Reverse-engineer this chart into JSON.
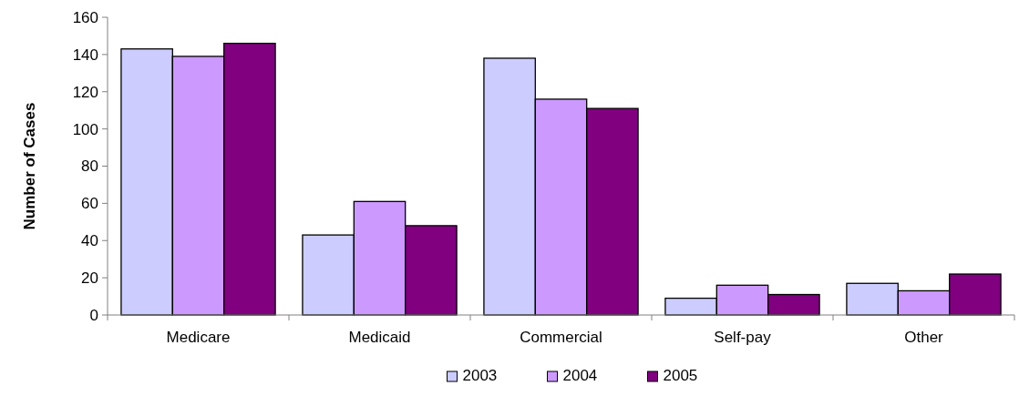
{
  "chart_data": {
    "type": "bar",
    "ylabel": "Number of Cases",
    "categories": [
      "Medicare",
      "Medicaid",
      "Commercial",
      "Self-pay",
      "Other"
    ],
    "series": [
      {
        "name": "2003",
        "color": "#ccccff",
        "values": [
          143,
          43,
          138,
          9,
          17
        ]
      },
      {
        "name": "2004",
        "color": "#cc99ff",
        "values": [
          139,
          61,
          116,
          16,
          13
        ]
      },
      {
        "name": "2005",
        "color": "#800080",
        "values": [
          146,
          48,
          111,
          11,
          22
        ]
      }
    ],
    "ylim": [
      0,
      160
    ],
    "yticks": [
      0,
      20,
      40,
      60,
      80,
      100,
      120,
      140,
      160
    ],
    "grid": false,
    "legend": "bottom"
  }
}
